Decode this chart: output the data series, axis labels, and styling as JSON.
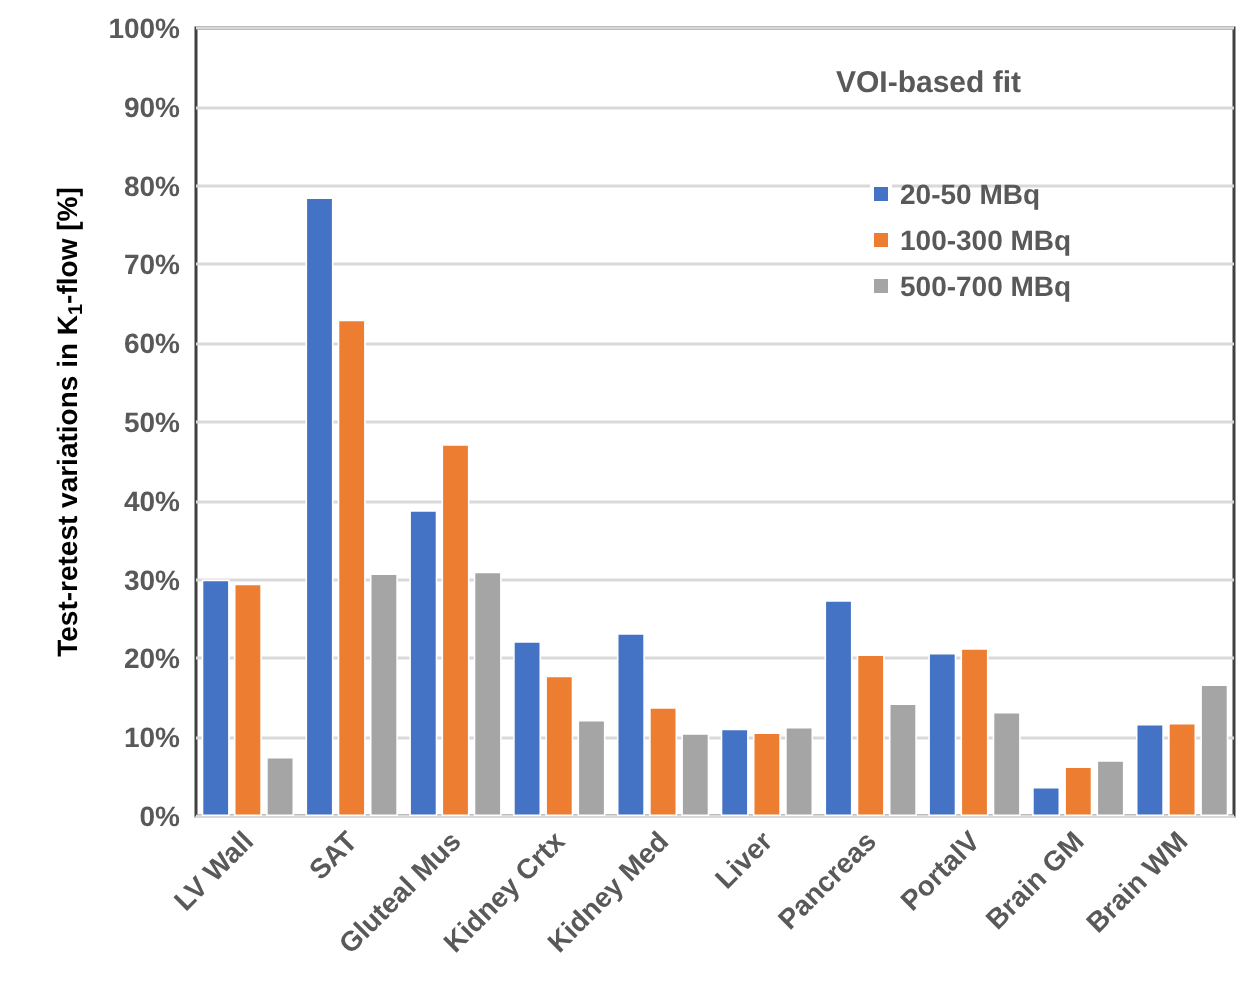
{
  "chart_data": {
    "type": "bar",
    "ylabel": "Test-retest variations in K$_{1}$-flow [%]",
    "annotations": [
      "VOI-based fit"
    ],
    "categories": [
      "LV Wall",
      "SAT",
      "Gluteal Mus",
      "Kidney Crtx",
      "Kidney Med",
      "Liver",
      "Pancreas",
      "PortalV",
      "Brain GM",
      "Brain WM"
    ],
    "series": [
      {
        "name": "20-50 MBq",
        "color": "#4472c4",
        "values": [
          30,
          78.5,
          38.8,
          22.2,
          23.2,
          11.1,
          27.4,
          20.7,
          3.7,
          11.7
        ]
      },
      {
        "name": "100-300 MBq",
        "color": "#ed7d31",
        "values": [
          29.5,
          63,
          47.2,
          17.8,
          13.8,
          10.6,
          20.5,
          21.3,
          6.3,
          11.8
        ]
      },
      {
        "name": "500-700 MBq",
        "color": "#a5a5a5",
        "values": [
          7.5,
          30.8,
          31,
          12.2,
          10.5,
          11.3,
          14.3,
          13.2,
          7.1,
          16.7
        ]
      }
    ],
    "ylim": [
      0,
      100
    ],
    "yticks": [
      {
        "value": 0,
        "label": "0%"
      },
      {
        "value": 10,
        "label": "10%"
      },
      {
        "value": 20,
        "label": "20%"
      },
      {
        "value": 30,
        "label": "30%"
      },
      {
        "value": 40,
        "label": "40%"
      },
      {
        "value": 50,
        "label": "50%"
      },
      {
        "value": 60,
        "label": "60%"
      },
      {
        "value": 70,
        "label": "70%"
      },
      {
        "value": 80,
        "label": "80%"
      },
      {
        "value": 90,
        "label": "90%"
      },
      {
        "value": 100,
        "label": "100%"
      }
    ],
    "grid": "y",
    "legend": "top right"
  }
}
